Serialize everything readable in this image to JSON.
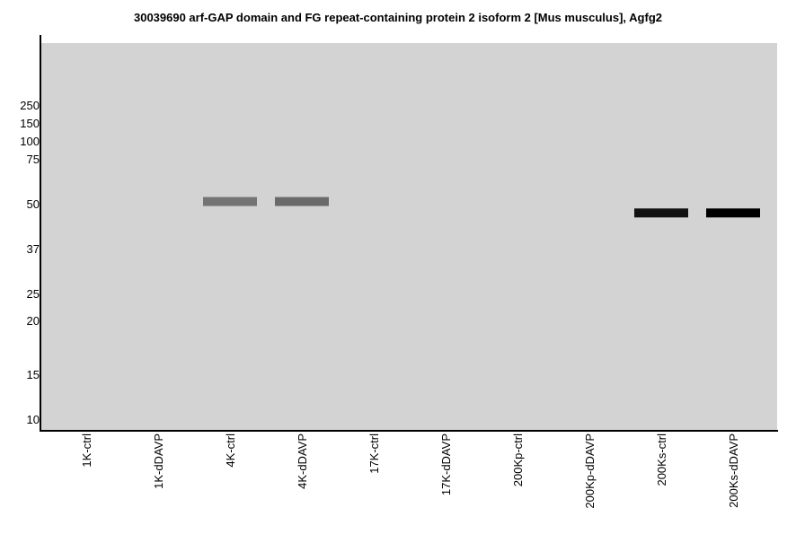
{
  "chart_data": {
    "type": "bar",
    "title": "30039690 arf-GAP domain and FG repeat-containing protein 2 isoform 2 [Mus musculus], Agfg2",
    "xlabel": "",
    "ylabel": "",
    "grid": false,
    "legend": "none",
    "y_scale": "log",
    "y_unit": "kDa",
    "y_ticks": [
      {
        "value": 250,
        "label": "250"
      },
      {
        "value": 150,
        "label": "150"
      },
      {
        "value": 100,
        "label": "100"
      },
      {
        "value": 75,
        "label": "75"
      },
      {
        "value": 50,
        "label": "50"
      },
      {
        "value": 37,
        "label": "37"
      },
      {
        "value": 25,
        "label": "25"
      },
      {
        "value": 20,
        "label": "20"
      },
      {
        "value": 15,
        "label": "15"
      },
      {
        "value": 10,
        "label": "10"
      }
    ],
    "categories": [
      "1K-ctrl",
      "1K-dDAVP",
      "4K-ctrl",
      "4K-dDAVP",
      "17K-ctrl",
      "17K-dDAVP",
      "200Kp-ctrl",
      "200Kp-dDAVP",
      "200Ks-ctrl",
      "200Ks-dDAVP"
    ],
    "bands": [
      {
        "lane": "4K-ctrl",
        "mw": 51,
        "intensity": 0.45
      },
      {
        "lane": "4K-dDAVP",
        "mw": 51,
        "intensity": 0.5
      },
      {
        "lane": "200Ks-ctrl",
        "mw": 47,
        "intensity": 0.92
      },
      {
        "lane": "200Ks-dDAVP",
        "mw": 47,
        "intensity": 1.0
      }
    ],
    "colors": {
      "background": "#ffffff",
      "gel": "#d3d3d3",
      "axis": "#000000",
      "band_dark": "#000000",
      "band_light": "#d3d3d3"
    }
  }
}
